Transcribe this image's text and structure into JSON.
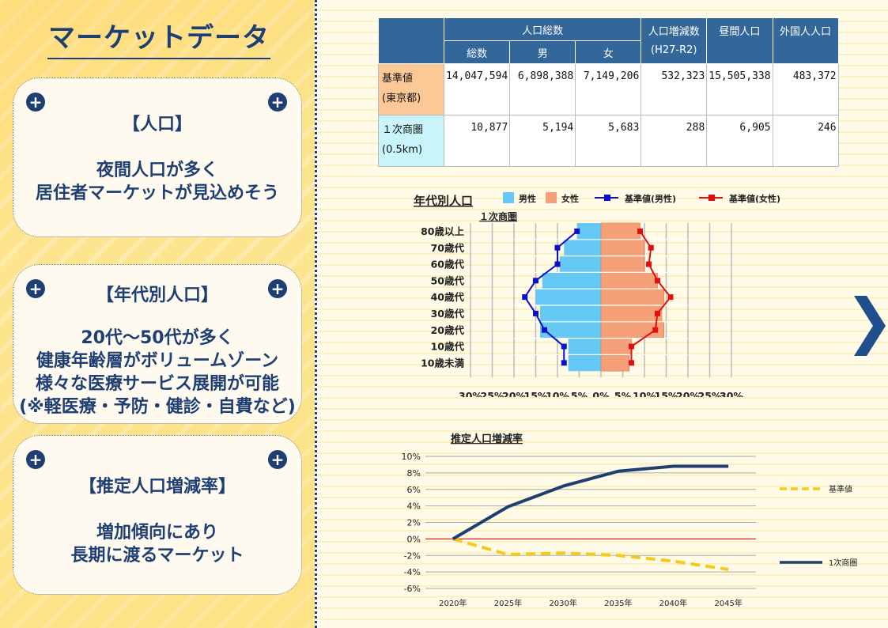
{
  "left": {
    "title": "マーケットデータ",
    "cards": [
      {
        "head": "【人口】",
        "body": "夜間人口が多く\n居住者マーケットが見込めそう"
      },
      {
        "head": "【年代別人口】",
        "body": "20代～50代が多く\n健康年齢層がボリュームゾーン\n様々な医療サービス展開が可能\n(※軽医療・予防・健診・自費など)"
      },
      {
        "head": "【推定人口増減率】",
        "body": "増加傾向にあり\n長期に渡るマーケット"
      }
    ]
  },
  "table": {
    "headers": {
      "population_total": "人口総数",
      "total": "総数",
      "male": "男",
      "female": "女",
      "change": "人口増減数",
      "change_period": "(H27-R2)",
      "daytime": "昼間人口",
      "foreign": "外国人人口"
    },
    "rows": [
      {
        "label1": "基準値",
        "label2": "(東京都)",
        "total": "14,047,594",
        "male": "6,898,388",
        "female": "7,149,206",
        "change": "532,323",
        "daytime": "15,505,338",
        "foreign": "483,372"
      },
      {
        "label1": "１次商圏",
        "label2": "(0.5km)",
        "total": "10,877",
        "male": "5,194",
        "female": "5,683",
        "change": "288",
        "daytime": "6,905",
        "foreign": "246"
      }
    ]
  },
  "chart_data": [
    {
      "type": "bar",
      "title": "年代別人口",
      "subtitle": "１次商圏",
      "categories": [
        "80歳以上",
        "70歳代",
        "60歳代",
        "50歳代",
        "40歳代",
        "30歳代",
        "20歳代",
        "10歳代",
        "10歳未満"
      ],
      "series": [
        {
          "name": "男性",
          "values": [
            5.5,
            8.5,
            9.5,
            13.5,
            15,
            14,
            14,
            7.5,
            7.5
          ],
          "color": "#66c8f5"
        },
        {
          "name": "女性",
          "values": [
            9,
            10,
            10,
            13,
            14.5,
            14,
            14.5,
            7,
            6.5
          ],
          "color": "#f6a07a"
        },
        {
          "name": "基準値(男性)",
          "values": [
            5.5,
            10,
            10,
            15,
            17.5,
            15,
            13,
            8.5,
            8.5
          ],
          "color": "#0a10cc"
        },
        {
          "name": "基準値(女性)",
          "values": [
            9,
            11.5,
            11,
            13,
            16,
            13,
            12.5,
            7,
            7
          ],
          "color": "#e01010"
        }
      ],
      "xticks": [
        "30%",
        "25%",
        "20%",
        "15%",
        "10%",
        "5%",
        "0%",
        "5%",
        "10%",
        "15%",
        "20%",
        "25%",
        "30%"
      ],
      "xlim": [
        -30,
        30
      ]
    },
    {
      "type": "line",
      "title": "推定人口増減率",
      "x": [
        "2020年",
        "2025年",
        "2030年",
        "2035年",
        "2040年",
        "2045年"
      ],
      "series": [
        {
          "name": "基準値",
          "values": [
            0,
            -1.9,
            -1.7,
            -2.0,
            -2.7,
            -3.7
          ],
          "color": "#f2cc1d",
          "dash": true
        },
        {
          "name": "1次商圏",
          "values": [
            0,
            3.9,
            6.4,
            8.2,
            8.8,
            8.8
          ],
          "color": "#1f3f73",
          "dash": false
        }
      ],
      "yticks": [
        "10%",
        "8%",
        "6%",
        "4%",
        "2%",
        "0%",
        "-2%",
        "-4%",
        "-6%"
      ],
      "ylim": [
        -6,
        10
      ],
      "zero_line_color": "#e02020"
    }
  ]
}
